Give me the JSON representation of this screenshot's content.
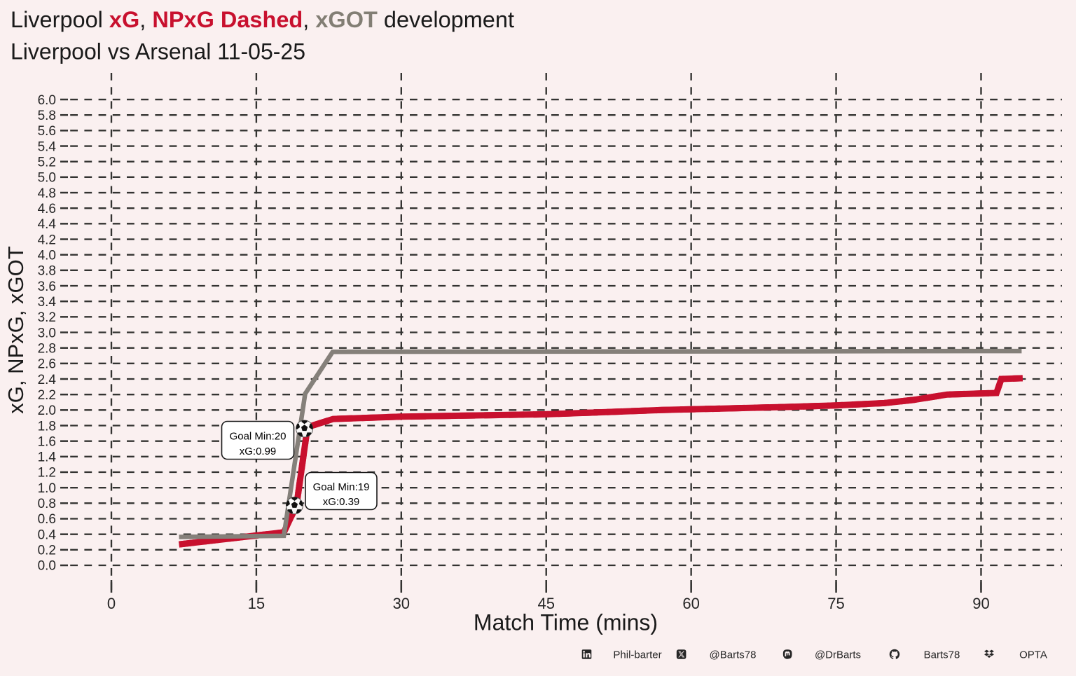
{
  "title": {
    "segments": [
      {
        "text": "Liverpool ",
        "color": "#1a1a1a",
        "bold": false
      },
      {
        "text": "xG",
        "color": "#c8102e",
        "bold": true
      },
      {
        "text": ", ",
        "color": "#1a1a1a",
        "bold": false
      },
      {
        "text": "NPxG Dashed",
        "color": "#c8102e",
        "bold": true
      },
      {
        "text": ", ",
        "color": "#1a1a1a",
        "bold": false
      },
      {
        "text": "xGOT",
        "color": "#827e74",
        "bold": true
      },
      {
        "text": " development",
        "color": "#1a1a1a",
        "bold": false
      }
    ]
  },
  "subtitle": "Liverpool vs Arsenal 11-05-25",
  "colors": {
    "background": "#faf0f0",
    "grid": "#333331",
    "tick_text": "#262626",
    "title_text": "#1a1a1a",
    "xg_red": "#c8102e",
    "xgot_gray": "#85807a",
    "annotation_box_fill": "#ffffff",
    "annotation_box_stroke": "#1a1a1a"
  },
  "chart_data": {
    "type": "line",
    "title": "Liverpool xG, NPxG Dashed, xGOT development",
    "subtitle": "Liverpool vs Arsenal 11-05-25",
    "xlabel": "Match Time (mins)",
    "ylabel": "xG, NPxG, xGOT",
    "xlim": [
      -5.4,
      98.4
    ],
    "ylim": [
      -0.35,
      6.35
    ],
    "xticks": [
      0,
      15,
      30,
      45,
      60,
      75,
      90
    ],
    "yticks_min": 0.0,
    "yticks_max": 6.0,
    "ytick_step": 0.2,
    "ytick_labels": [
      "0.0",
      "0.2",
      "0.4",
      "0.6",
      "0.8",
      "1.0",
      "1.2",
      "1.4",
      "1.6",
      "1.8",
      "2.0",
      "2.2",
      "2.4",
      "2.6",
      "2.8",
      "3.0",
      "3.2",
      "3.4",
      "3.6",
      "3.8",
      "4.0",
      "4.2",
      "4.4",
      "4.6",
      "4.8",
      "5.0",
      "5.2",
      "5.4",
      "5.6",
      "5.8",
      "6.0"
    ],
    "grid": "dashed",
    "legend": "none",
    "series": [
      {
        "name": "xG",
        "color": "#c8102e",
        "style": "solid",
        "width": 9,
        "x": [
          7.0,
          17.85,
          19.15,
          20.3,
          22.95,
          30.0,
          45.0,
          57.0,
          70.0,
          75.0,
          80.0,
          83.0,
          86.5,
          91.6,
          92.1,
          94.3
        ],
        "y": [
          0.27,
          0.425,
          0.77,
          1.78,
          1.885,
          1.915,
          1.945,
          2.0,
          2.04,
          2.06,
          2.09,
          2.13,
          2.2,
          2.22,
          2.4,
          2.41
        ]
      },
      {
        "name": "NPxG",
        "color": "#c8102e",
        "style": "dashed",
        "width": 9,
        "x": [
          7.0,
          17.85,
          19.15,
          20.3,
          22.95,
          30.0,
          45.0,
          57.0,
          70.0,
          75.0,
          80.0,
          83.0,
          86.5,
          91.6,
          92.1,
          94.3
        ],
        "y": [
          0.27,
          0.425,
          0.77,
          1.78,
          1.885,
          1.915,
          1.945,
          2.0,
          2.04,
          2.06,
          2.09,
          2.13,
          2.2,
          2.22,
          2.4,
          2.41
        ]
      },
      {
        "name": "xGOT",
        "color": "#85807a",
        "style": "solid",
        "width": 6.5,
        "x": [
          7.0,
          17.85,
          20.05,
          22.9,
          94.2
        ],
        "y": [
          0.365,
          0.38,
          2.21,
          2.75,
          2.76
        ]
      }
    ],
    "goals": [
      {
        "minute": 19,
        "shot_xg": 0.39,
        "marker_x": 18.95,
        "marker_y": 0.77,
        "label_line1": "Goal Min:19",
        "label_line2": "xG:0.39"
      },
      {
        "minute": 20,
        "shot_xg": 0.99,
        "marker_x": 19.98,
        "marker_y": 1.76,
        "label_line1": "Goal Min:20",
        "label_line2": "xG:0.99"
      }
    ]
  },
  "footer": {
    "items": [
      {
        "icon": "linkedin",
        "label": "Phil-barter"
      },
      {
        "icon": "x-twitter",
        "label": "@Barts78"
      },
      {
        "icon": "mastodon",
        "label": "@DrBarts"
      },
      {
        "icon": "github",
        "label": "Barts78"
      },
      {
        "icon": "dropbox",
        "label": "OPTA"
      }
    ]
  }
}
